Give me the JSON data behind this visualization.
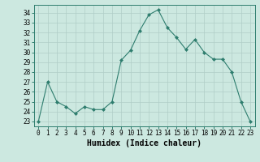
{
  "x": [
    0,
    1,
    2,
    3,
    4,
    5,
    6,
    7,
    8,
    9,
    10,
    11,
    12,
    13,
    14,
    15,
    16,
    17,
    18,
    19,
    20,
    21,
    22,
    23
  ],
  "y": [
    23,
    27,
    25,
    24.5,
    23.8,
    24.5,
    24.2,
    24.2,
    25,
    29.2,
    30.2,
    32.2,
    33.8,
    34.3,
    32.5,
    31.5,
    30.3,
    31.3,
    30,
    29.3,
    29.3,
    28,
    25,
    23
  ],
  "line_color": "#2e7d6e",
  "marker": "D",
  "marker_size": 2,
  "bg_color": "#cce8e0",
  "grid_color": "#b0cdc7",
  "xlabel": "Humidex (Indice chaleur)",
  "xlim": [
    -0.5,
    23.5
  ],
  "ylim": [
    22.5,
    34.8
  ],
  "yticks": [
    23,
    24,
    25,
    26,
    27,
    28,
    29,
    30,
    31,
    32,
    33,
    34
  ],
  "xticks": [
    0,
    1,
    2,
    3,
    4,
    5,
    6,
    7,
    8,
    9,
    10,
    11,
    12,
    13,
    14,
    15,
    16,
    17,
    18,
    19,
    20,
    21,
    22,
    23
  ],
  "tick_label_fontsize": 5.5,
  "xlabel_fontsize": 7,
  "spine_color": "#2e7d6e",
  "tick_color": "#2e7d6e"
}
